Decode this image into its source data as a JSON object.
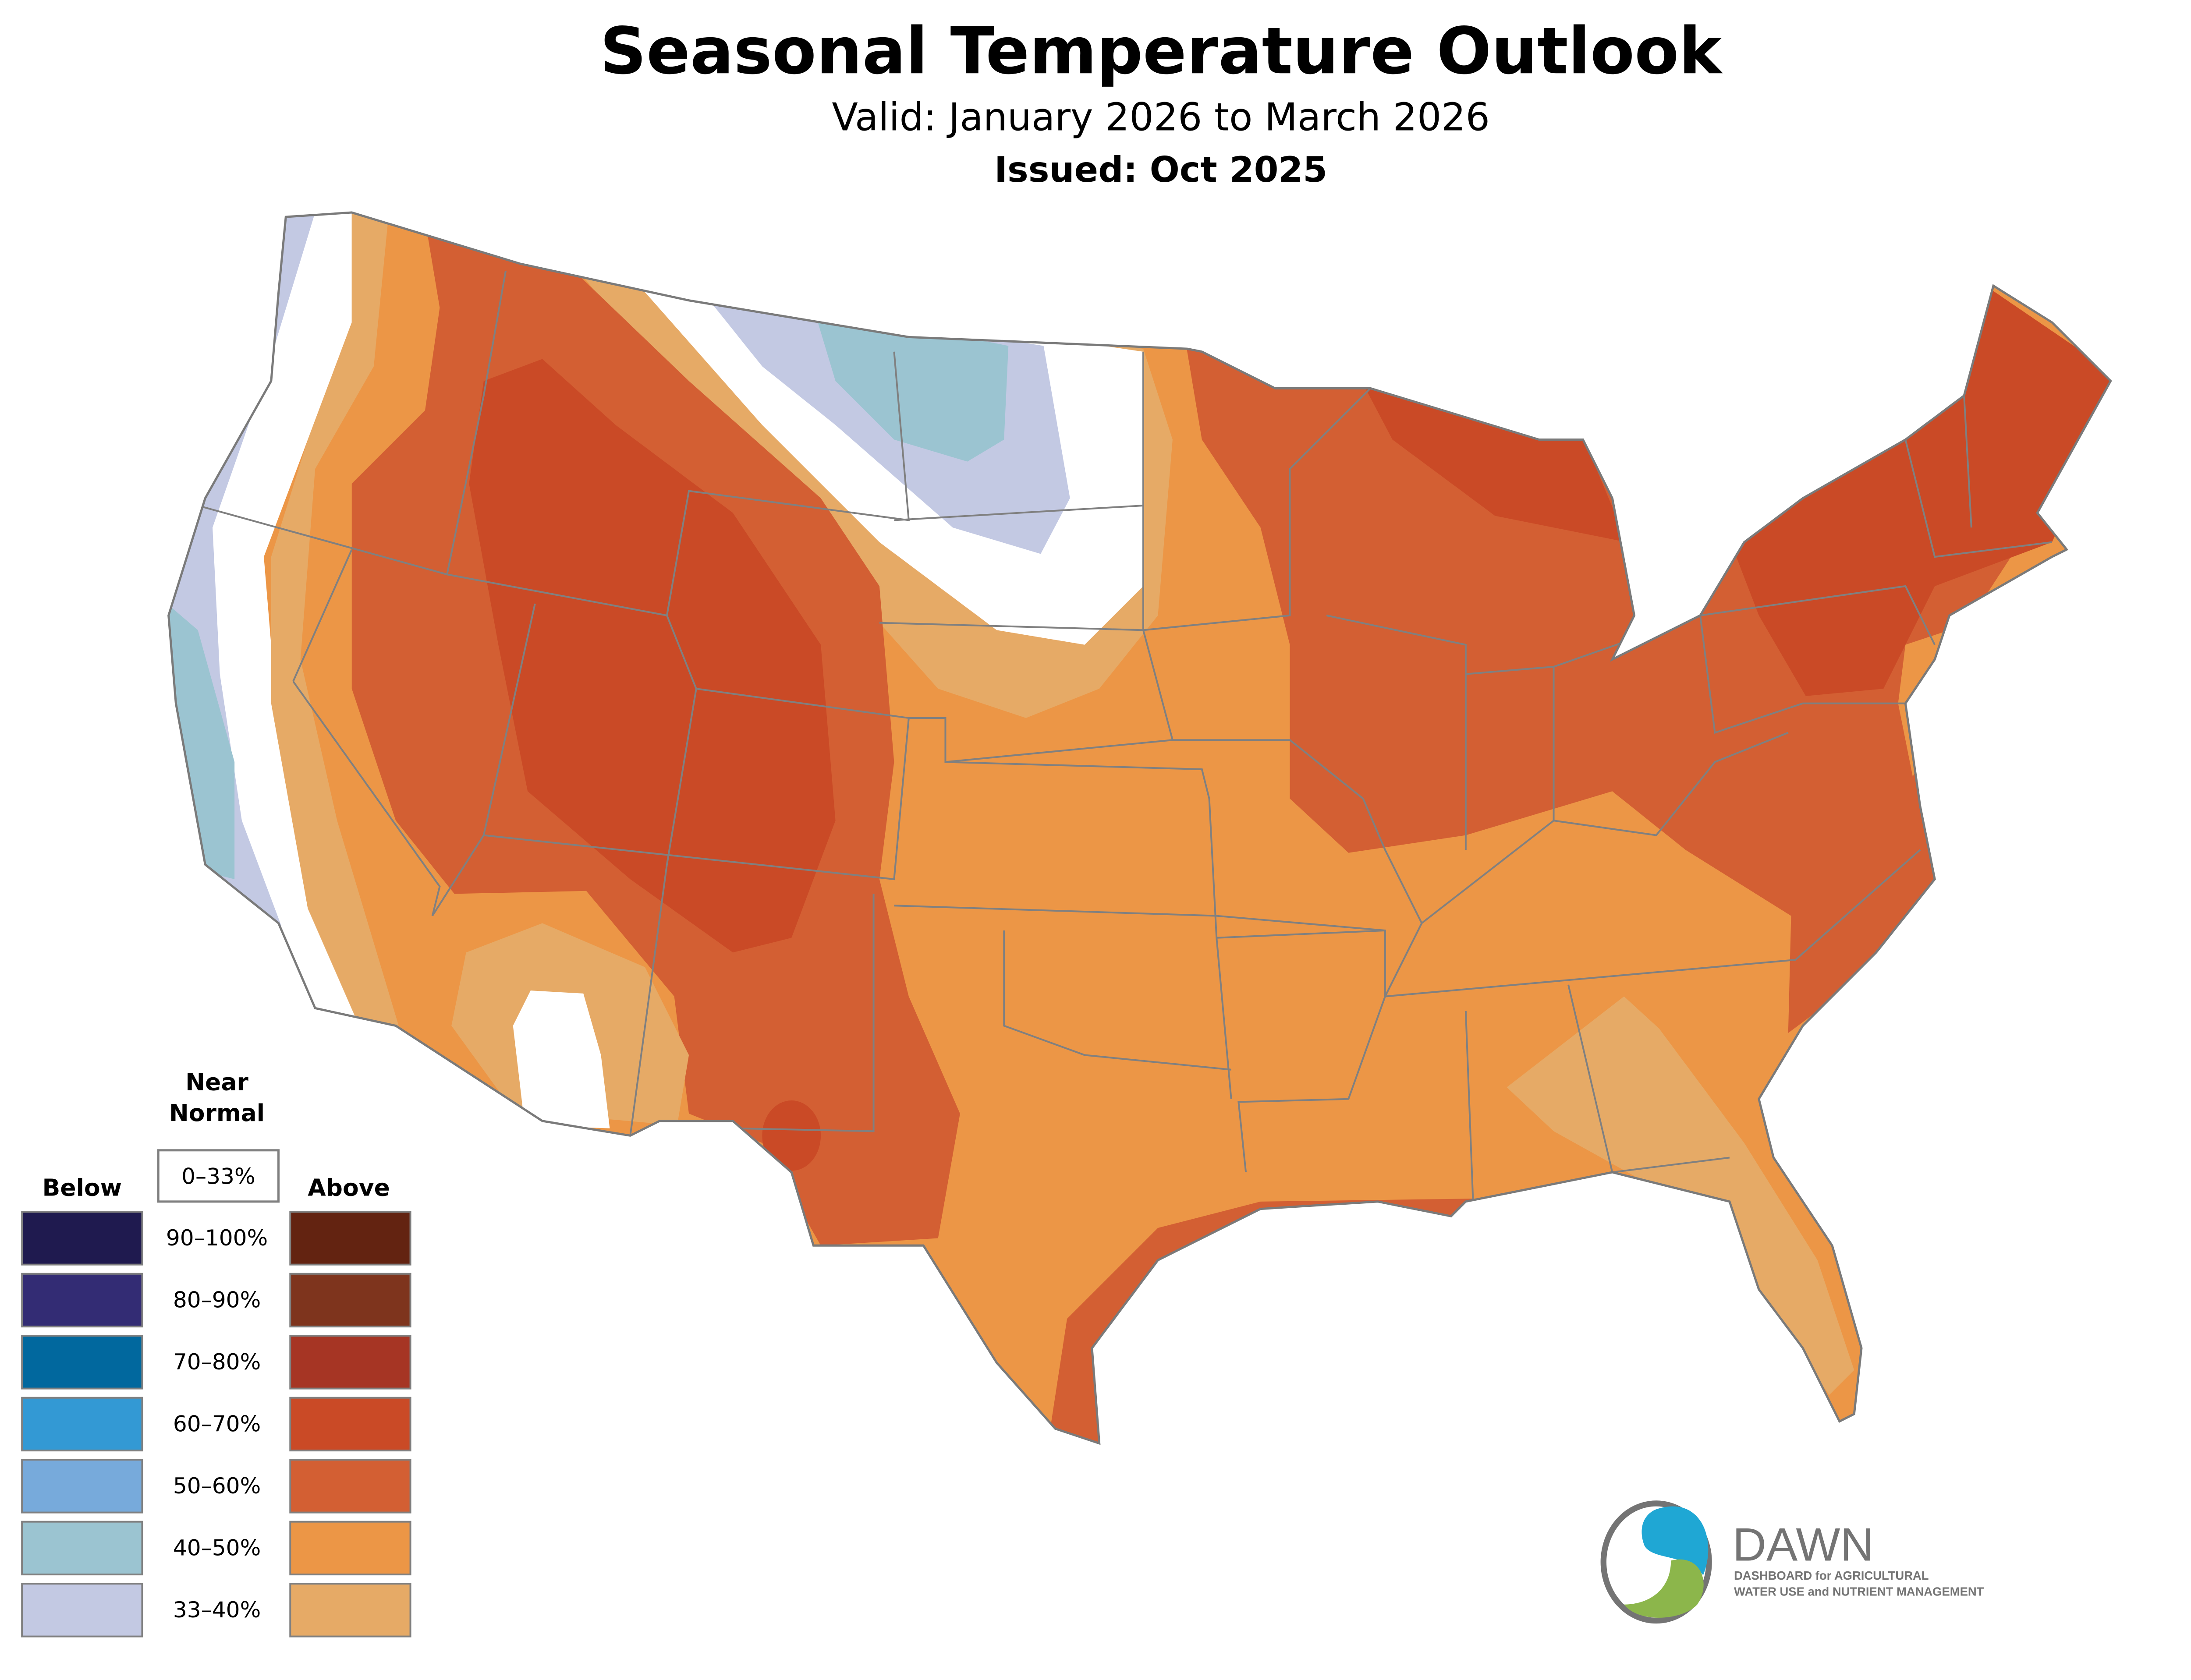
{
  "header": {
    "title": "Seasonal Temperature Outlook",
    "valid": "Valid: January 2026 to March 2026",
    "issued": "Issued: Oct 2025"
  },
  "legend": {
    "near_normal_line1": "Near",
    "near_normal_line2": "Normal",
    "near_normal_range": "0–33%",
    "below_label": "Below",
    "above_label": "Above",
    "rows": [
      {
        "range": "90–100%",
        "below_color": "#1f1a4f",
        "above_color": "#632311"
      },
      {
        "range": "80–90%",
        "below_color": "#332c74",
        "above_color": "#7e341d"
      },
      {
        "range": "70–80%",
        "below_color": "#01689e",
        "above_color": "#a63524"
      },
      {
        "range": "60–70%",
        "below_color": "#3399d4",
        "above_color": "#ca4a26"
      },
      {
        "range": "50–60%",
        "below_color": "#77aadb",
        "above_color": "#d35f33"
      },
      {
        "range": "40–50%",
        "below_color": "#9bc4d1",
        "above_color": "#ec9646"
      },
      {
        "range": "33–40%",
        "below_color": "#c3c9e3",
        "above_color": "#e6aa66"
      }
    ]
  },
  "logo": {
    "name": "DAWN",
    "tagline_1": "DASHBOARD for AGRICULTURAL",
    "tagline_2": "WATER USE and NUTRIENT MANAGEMENT",
    "colors": {
      "blue": "#1fa7d4",
      "green": "#8cb64b",
      "gray": "#747474"
    }
  }
}
